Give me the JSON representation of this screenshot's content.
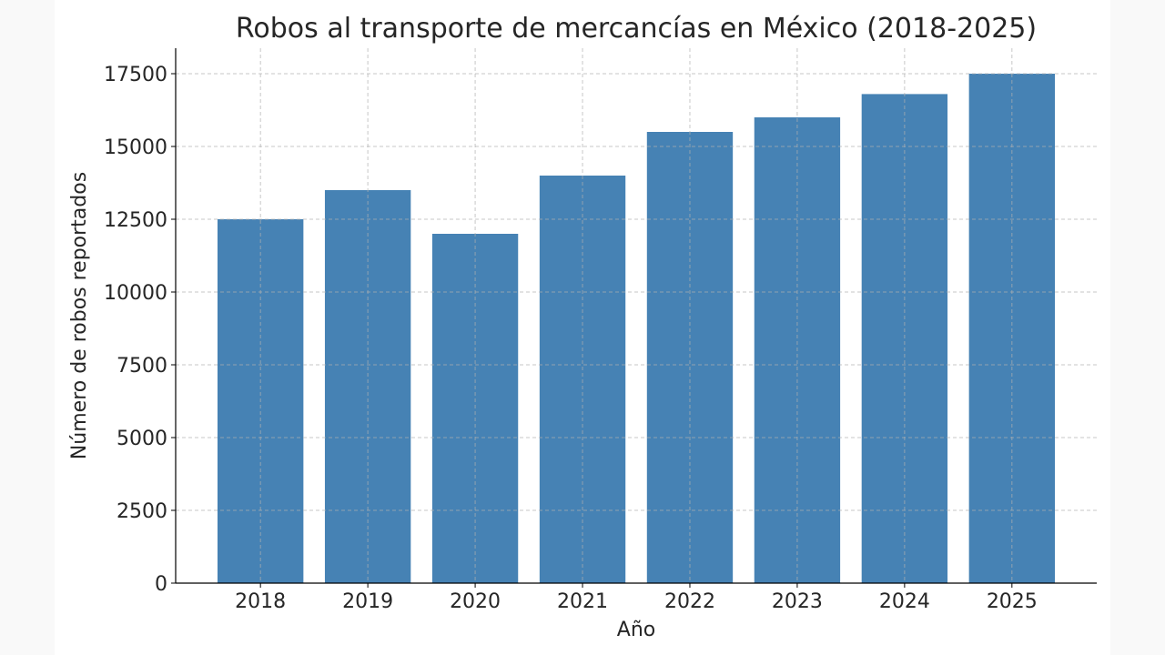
{
  "chart_data": {
    "type": "bar",
    "title": "Robos al transporte de mercancías en México (2018-2025)",
    "xlabel": "Año",
    "ylabel": "Número de robos reportados",
    "categories": [
      "2018",
      "2019",
      "2020",
      "2021",
      "2022",
      "2023",
      "2024",
      "2025"
    ],
    "values": [
      12500,
      13500,
      12000,
      14000,
      15500,
      16000,
      16800,
      17500
    ],
    "ylim": [
      0,
      18375
    ],
    "yticks": [
      0,
      2500,
      5000,
      7500,
      10000,
      12500,
      15000,
      17500
    ],
    "grid": true,
    "bar_color": "#4682b4"
  }
}
